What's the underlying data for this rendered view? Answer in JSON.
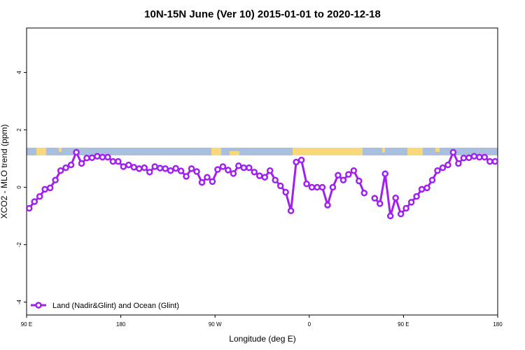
{
  "chart_data": {
    "type": "line",
    "title": "10N-15N June (Ver 10)   2015-01-01 to 2020-12-18",
    "x_label": "Longitude (deg E)",
    "y_label": "XCO2 - MLO trend (ppm)",
    "xlim": [
      90,
      540
    ],
    "ylim": [
      -4.45,
      5.55
    ],
    "xticks": [
      {
        "value": 90,
        "label": "90 E"
      },
      180,
      {
        "value": 270,
        "label": "90 W"
      },
      {
        "value": 360,
        "label": "0"
      },
      {
        "value": 450,
        "label": "90 E"
      },
      {
        "value": 540,
        "label": "180"
      }
    ],
    "yticks": [
      -4,
      -2,
      0,
      2,
      4
    ],
    "legend": "bottom-left",
    "x": [
      92.5,
      97.5,
      102.5,
      107.5,
      112.5,
      117.5,
      122.5,
      127.5,
      132.5,
      137.5,
      142.5,
      147.5,
      152.5,
      157.5,
      162.5,
      167.5,
      172.5,
      177.5,
      182.5,
      187.5,
      192.5,
      197.5,
      202.5,
      207.5,
      212.5,
      217.5,
      222.5,
      227.5,
      232.5,
      237.5,
      242.5,
      247.5,
      252.5,
      257.5,
      262.5,
      267.5,
      272.5,
      277.5,
      282.5,
      287.5,
      292.5,
      297.5,
      302.5,
      307.5,
      312.5,
      317.5,
      322.5,
      327.5,
      332.5,
      337.5,
      342.5,
      347.5,
      352.5,
      357.5,
      362.5,
      367.5,
      372.5,
      377.5,
      382.5,
      387.5,
      392.5,
      397.5,
      402.5,
      407.5,
      412.5,
      417.5,
      422.5,
      427.5,
      432.5,
      437.5,
      442.5,
      447.5,
      452.5,
      457.5,
      462.5,
      467.5,
      472.5,
      477.5,
      482.5,
      487.5,
      492.5,
      497.5,
      502.5,
      507.5,
      512.5,
      517.5,
      522.5,
      527.5,
      532.5,
      537.5
    ],
    "series": [
      {
        "name": "Land (Nadir&Glint) and Ocean (Glint)",
        "color": "#a020f0",
        "values": [
          -0.73,
          -0.5,
          -0.32,
          -0.07,
          -0.02,
          0.25,
          0.58,
          0.68,
          0.78,
          1.22,
          0.83,
          1.02,
          1.03,
          1.08,
          1.05,
          1.05,
          0.9,
          0.9,
          0.72,
          0.78,
          0.7,
          0.65,
          0.68,
          0.53,
          0.72,
          0.67,
          0.65,
          0.58,
          0.66,
          0.57,
          0.38,
          0.65,
          0.55,
          0.17,
          0.35,
          0.2,
          0.62,
          0.72,
          0.6,
          0.48,
          0.75,
          0.68,
          0.68,
          0.53,
          0.4,
          0.35,
          0.58,
          0.25,
          0.05,
          -0.17,
          -0.82,
          0.88,
          0.95,
          0.12,
          0.0,
          0.0,
          0.0,
          -0.62,
          0.0,
          0.42,
          0.25,
          0.45,
          0.58,
          0.22,
          -0.2,
          null,
          -0.38,
          -0.57,
          0.47,
          -1.0,
          -0.37,
          -0.93,
          -0.73,
          -0.52,
          -0.32,
          -0.07,
          -0.02,
          0.25,
          0.58,
          0.68,
          0.78,
          1.22,
          0.83,
          1.02,
          1.03,
          1.08,
          1.05,
          1.05,
          0.9,
          0.9
        ]
      }
    ]
  }
}
